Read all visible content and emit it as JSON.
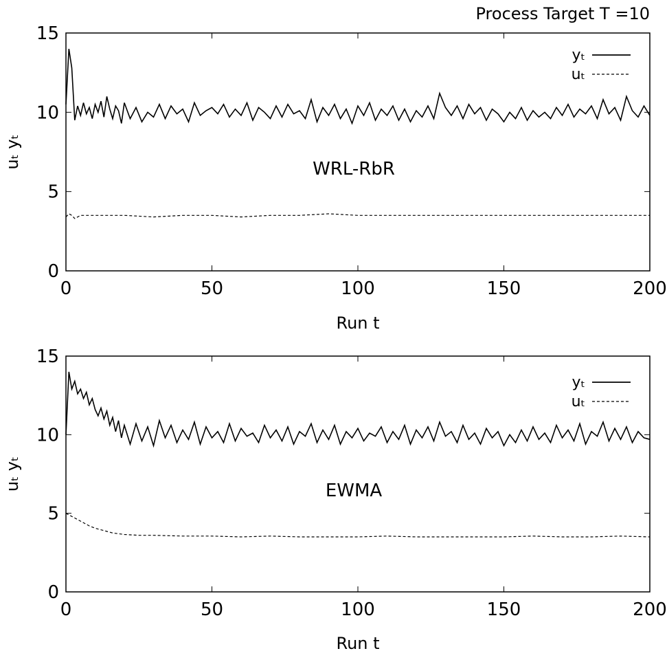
{
  "figure_title": "Process Target T =10",
  "chart_data": [
    {
      "type": "line",
      "xlabel": "Run t",
      "ylabel": "uₜ  yₜ",
      "xlim": [
        0,
        200
      ],
      "ylim": [
        0,
        15
      ],
      "xticks": [
        0,
        50,
        100,
        150,
        200
      ],
      "yticks": [
        0,
        5,
        10,
        15
      ],
      "grid": false,
      "legend_position": "top-right",
      "annotation": "WRL-RbR",
      "series": [
        {
          "name": "yₜ",
          "style": "solid",
          "x": [
            0,
            1,
            2,
            3,
            4,
            5,
            6,
            7,
            8,
            9,
            10,
            11,
            12,
            13,
            14,
            15,
            16,
            17,
            18,
            19,
            20,
            22,
            24,
            26,
            28,
            30,
            32,
            34,
            36,
            38,
            40,
            42,
            44,
            46,
            48,
            50,
            52,
            54,
            56,
            58,
            60,
            62,
            64,
            66,
            68,
            70,
            72,
            74,
            76,
            78,
            80,
            82,
            84,
            86,
            88,
            90,
            92,
            94,
            96,
            98,
            100,
            102,
            104,
            106,
            108,
            110,
            112,
            114,
            116,
            118,
            120,
            122,
            124,
            126,
            128,
            130,
            132,
            134,
            136,
            138,
            140,
            142,
            144,
            146,
            148,
            150,
            152,
            154,
            156,
            158,
            160,
            162,
            164,
            166,
            168,
            170,
            172,
            174,
            176,
            178,
            180,
            182,
            184,
            186,
            188,
            190,
            192,
            194,
            196,
            198,
            200
          ],
          "values": [
            10.5,
            14.0,
            12.8,
            9.5,
            10.4,
            9.8,
            10.6,
            9.9,
            10.3,
            9.6,
            10.5,
            10.0,
            10.7,
            9.7,
            11.0,
            10.2,
            9.6,
            10.4,
            10.1,
            9.3,
            10.6,
            9.6,
            10.3,
            9.4,
            10.0,
            9.7,
            10.5,
            9.6,
            10.4,
            9.9,
            10.2,
            9.4,
            10.6,
            9.8,
            10.1,
            10.3,
            9.9,
            10.5,
            9.7,
            10.2,
            9.8,
            10.6,
            9.5,
            10.3,
            10.0,
            9.6,
            10.4,
            9.7,
            10.5,
            9.9,
            10.1,
            9.6,
            10.8,
            9.4,
            10.3,
            9.8,
            10.5,
            9.6,
            10.2,
            9.3,
            10.4,
            9.8,
            10.6,
            9.5,
            10.2,
            9.8,
            10.4,
            9.5,
            10.2,
            9.4,
            10.1,
            9.7,
            10.4,
            9.6,
            11.2,
            10.3,
            9.8,
            10.4,
            9.6,
            10.5,
            9.9,
            10.3,
            9.5,
            10.2,
            9.9,
            9.4,
            10.0,
            9.6,
            10.3,
            9.5,
            10.1,
            9.7,
            10.0,
            9.6,
            10.3,
            9.8,
            10.5,
            9.7,
            10.2,
            9.9,
            10.4,
            9.6,
            10.8,
            9.9,
            10.3,
            9.5,
            11.0,
            10.1,
            9.7,
            10.4,
            9.8
          ]
        },
        {
          "name": "uₜ",
          "style": "dashed",
          "x": [
            0,
            1,
            2,
            3,
            5,
            10,
            20,
            30,
            40,
            50,
            60,
            70,
            80,
            90,
            100,
            110,
            120,
            130,
            140,
            150,
            160,
            170,
            180,
            190,
            200
          ],
          "values": [
            3.4,
            3.6,
            3.5,
            3.3,
            3.5,
            3.5,
            3.5,
            3.4,
            3.5,
            3.5,
            3.4,
            3.5,
            3.5,
            3.6,
            3.5,
            3.5,
            3.5,
            3.5,
            3.5,
            3.5,
            3.5,
            3.5,
            3.5,
            3.5,
            3.5
          ]
        }
      ]
    },
    {
      "type": "line",
      "xlabel": "Run t",
      "ylabel": "uₜ  yₜ",
      "xlim": [
        0,
        200
      ],
      "ylim": [
        0,
        15
      ],
      "xticks": [
        0,
        50,
        100,
        150,
        200
      ],
      "yticks": [
        0,
        5,
        10,
        15
      ],
      "grid": false,
      "legend_position": "top-right",
      "annotation": "EWMA",
      "series": [
        {
          "name": "yₜ",
          "style": "solid",
          "x": [
            0,
            1,
            2,
            3,
            4,
            5,
            6,
            7,
            8,
            9,
            10,
            11,
            12,
            13,
            14,
            15,
            16,
            17,
            18,
            19,
            20,
            22,
            24,
            26,
            28,
            30,
            32,
            34,
            36,
            38,
            40,
            42,
            44,
            46,
            48,
            50,
            52,
            54,
            56,
            58,
            60,
            62,
            64,
            66,
            68,
            70,
            72,
            74,
            76,
            78,
            80,
            82,
            84,
            86,
            88,
            90,
            92,
            94,
            96,
            98,
            100,
            102,
            104,
            106,
            108,
            110,
            112,
            114,
            116,
            118,
            120,
            122,
            124,
            126,
            128,
            130,
            132,
            134,
            136,
            138,
            140,
            142,
            144,
            146,
            148,
            150,
            152,
            154,
            156,
            158,
            160,
            162,
            164,
            166,
            168,
            170,
            172,
            174,
            176,
            178,
            180,
            182,
            184,
            186,
            188,
            190,
            192,
            194,
            196,
            198,
            200
          ],
          "values": [
            10.0,
            14.0,
            12.9,
            13.4,
            12.6,
            12.9,
            12.3,
            12.7,
            11.9,
            12.3,
            11.6,
            11.2,
            11.7,
            11.0,
            11.5,
            10.6,
            11.1,
            10.2,
            10.9,
            9.8,
            10.6,
            9.4,
            10.7,
            9.6,
            10.5,
            9.3,
            10.9,
            9.8,
            10.6,
            9.5,
            10.3,
            9.7,
            10.8,
            9.4,
            10.5,
            9.8,
            10.2,
            9.5,
            10.7,
            9.6,
            10.4,
            9.9,
            10.1,
            9.5,
            10.6,
            9.8,
            10.3,
            9.6,
            10.5,
            9.4,
            10.2,
            9.9,
            10.7,
            9.5,
            10.3,
            9.7,
            10.6,
            9.4,
            10.2,
            9.8,
            10.4,
            9.6,
            10.1,
            9.9,
            10.5,
            9.5,
            10.2,
            9.7,
            10.6,
            9.4,
            10.3,
            9.8,
            10.5,
            9.6,
            10.8,
            9.9,
            10.2,
            9.5,
            10.6,
            9.7,
            10.1,
            9.4,
            10.4,
            9.8,
            10.2,
            9.3,
            10.0,
            9.5,
            10.3,
            9.6,
            10.5,
            9.7,
            10.1,
            9.5,
            10.6,
            9.8,
            10.3,
            9.6,
            10.7,
            9.4,
            10.2,
            9.9,
            10.8,
            9.6,
            10.4,
            9.7,
            10.5,
            9.5,
            10.2,
            9.8,
            9.7
          ]
        },
        {
          "name": "uₜ",
          "style": "dashed",
          "x": [
            0,
            1,
            2,
            3,
            4,
            5,
            6,
            8,
            10,
            12,
            14,
            16,
            18,
            20,
            25,
            30,
            40,
            50,
            60,
            70,
            80,
            90,
            100,
            110,
            120,
            130,
            140,
            150,
            160,
            170,
            180,
            190,
            200
          ],
          "values": [
            5.0,
            4.9,
            4.8,
            4.7,
            4.6,
            4.5,
            4.4,
            4.2,
            4.05,
            3.95,
            3.85,
            3.75,
            3.7,
            3.65,
            3.6,
            3.6,
            3.55,
            3.55,
            3.5,
            3.55,
            3.5,
            3.5,
            3.5,
            3.55,
            3.5,
            3.5,
            3.5,
            3.5,
            3.55,
            3.5,
            3.5,
            3.55,
            3.5
          ]
        }
      ]
    }
  ]
}
